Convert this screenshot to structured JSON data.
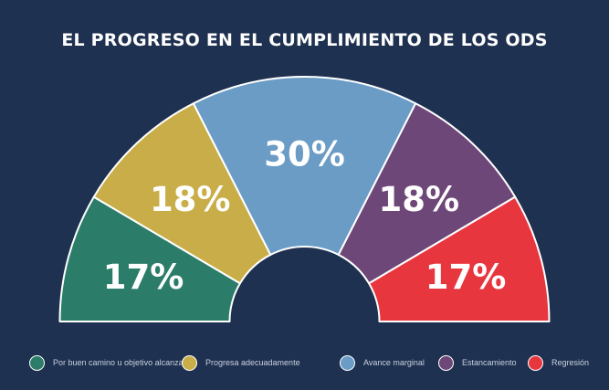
{
  "chart_data": {
    "type": "pie",
    "title": "EL PROGRESO EN EL CUMPLIMIENTO DE LOS ODS",
    "categories": [
      "Por buen camino u objetivo alcanzado",
      "Progresa adecuadamente",
      "Avance marginal",
      "Estancamiento",
      "Regresión"
    ],
    "values": [
      17,
      18,
      30,
      18,
      17
    ],
    "labels": [
      "17%",
      "18%",
      "30%",
      "18%",
      "17%"
    ],
    "colors": [
      "#2b7d69",
      "#c8ad48",
      "#6a9cc6",
      "#6e4779",
      "#e8363f"
    ],
    "legend_position": "bottom",
    "style": "semicircle-donut"
  }
}
